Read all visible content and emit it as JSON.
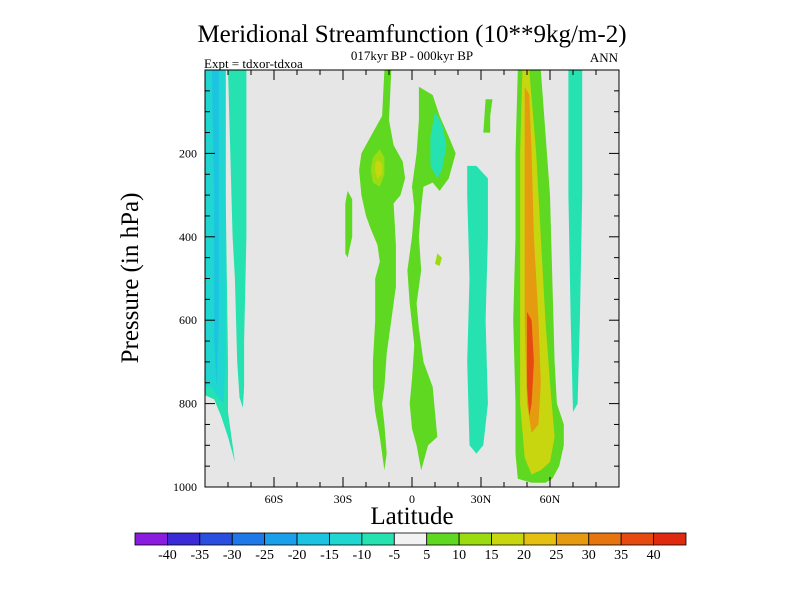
{
  "chart_data": {
    "type": "contour",
    "title": "Meridional Streamfunction (10**9kg/m-2)",
    "subtitle": "017kyr BP - 000kyr BP",
    "left_label": "Expt = tdxor-tdxoa",
    "right_label": "ANN",
    "xlabel": "Latitude",
    "ylabel": "Pressure (in hPa)",
    "xlim": [
      -90,
      90
    ],
    "ylim": [
      1000,
      0
    ],
    "y_inverted": true,
    "plot_background": "#e6e6e6",
    "x_ticks": [
      {
        "value": -60,
        "label": "60S"
      },
      {
        "value": -30,
        "label": "30S"
      },
      {
        "value": 0,
        "label": "0"
      },
      {
        "value": 30,
        "label": "30N"
      },
      {
        "value": 60,
        "label": "60N"
      }
    ],
    "y_ticks": [
      {
        "value": 200,
        "label": "200"
      },
      {
        "value": 400,
        "label": "400"
      },
      {
        "value": 600,
        "label": "600"
      },
      {
        "value": 800,
        "label": "800"
      },
      {
        "value": 1000,
        "label": "1000"
      }
    ],
    "colorbar": {
      "labels": [
        "-40",
        "-35",
        "-30",
        "-25",
        "-20",
        "-15",
        "-10",
        "-5",
        "5",
        "10",
        "15",
        "20",
        "25",
        "30",
        "35",
        "40"
      ],
      "colors": [
        "#8a1ce0",
        "#3a2ad8",
        "#2a4fe0",
        "#1e78e8",
        "#1aa0ea",
        "#1cc4e2",
        "#1fd6d0",
        "#26e2b0",
        "#f2f2f2",
        "#5ed820",
        "#9adc10",
        "#c8d610",
        "#e6c010",
        "#e69a10",
        "#e67410",
        "#e64a10",
        "#e02a10"
      ]
    },
    "regions": [
      {
        "name": "sh-cell-outer",
        "level": -5,
        "points": [
          [
            -90,
            0
          ],
          [
            -72,
            0
          ],
          [
            -72,
            400
          ],
          [
            -73,
            650
          ],
          [
            -73,
            760
          ],
          [
            -73.5,
            810
          ],
          [
            -75,
            785
          ],
          [
            -76,
            700
          ],
          [
            -77,
            500
          ],
          [
            -78,
            400
          ],
          [
            -79,
            200
          ],
          [
            -80,
            0
          ],
          [
            -81,
            0
          ],
          [
            -81,
            300
          ],
          [
            -80,
            700
          ],
          [
            -80,
            820
          ],
          [
            -78,
            900
          ],
          [
            -77,
            940
          ],
          [
            -78,
            920
          ],
          [
            -80,
            880
          ],
          [
            -83,
            830
          ],
          [
            -86,
            790
          ],
          [
            -90,
            780
          ]
        ]
      },
      {
        "name": "sh-cell-mid",
        "level": -10,
        "points": [
          [
            -90,
            0
          ],
          [
            -81,
            0
          ],
          [
            -81,
            300
          ],
          [
            -81,
            700
          ],
          [
            -82,
            800
          ],
          [
            -85,
            780
          ],
          [
            -87,
            760
          ],
          [
            -90,
            760
          ]
        ]
      },
      {
        "name": "sh-cell-core",
        "level": -15,
        "points": [
          [
            -87,
            0
          ],
          [
            -84,
            0
          ],
          [
            -84,
            300
          ],
          [
            -84,
            600
          ],
          [
            -85,
            760
          ],
          [
            -86,
            640
          ],
          [
            -86,
            300
          ]
        ]
      },
      {
        "name": "green-mid",
        "level": 5,
        "points": [
          [
            -12,
            0
          ],
          [
            -9,
            0
          ],
          [
            -10,
            120
          ],
          [
            -8,
            180
          ],
          [
            -4,
            220
          ],
          [
            -3,
            260
          ],
          [
            -5,
            300
          ],
          [
            -8,
            320
          ],
          [
            -7,
            420
          ],
          [
            -7,
            520
          ],
          [
            -9,
            600
          ],
          [
            -11,
            680
          ],
          [
            -12,
            760
          ],
          [
            -13,
            800
          ],
          [
            -12,
            850
          ],
          [
            -11,
            920
          ],
          [
            -12,
            960
          ],
          [
            -14,
            880
          ],
          [
            -16,
            820
          ],
          [
            -17,
            760
          ],
          [
            -17,
            700
          ],
          [
            -16,
            600
          ],
          [
            -16,
            500
          ],
          [
            -14,
            460
          ],
          [
            -15,
            420
          ],
          [
            -18,
            380
          ],
          [
            -20,
            350
          ],
          [
            -22,
            300
          ],
          [
            -23,
            240
          ],
          [
            -22,
            200
          ],
          [
            -19,
            170
          ],
          [
            -16,
            140
          ],
          [
            -13,
            110
          ]
        ]
      },
      {
        "name": "green-mid-yellow",
        "level": 10,
        "points": [
          [
            -14,
            190
          ],
          [
            -12,
            210
          ],
          [
            -12,
            250
          ],
          [
            -14,
            280
          ],
          [
            -17,
            270
          ],
          [
            -18,
            240
          ],
          [
            -17,
            210
          ]
        ]
      },
      {
        "name": "green-mid-core",
        "level": 15,
        "points": [
          [
            -15,
            215
          ],
          [
            -13,
            225
          ],
          [
            -13,
            250
          ],
          [
            -15,
            260
          ],
          [
            -16,
            245
          ],
          [
            -16,
            225
          ]
        ]
      },
      {
        "name": "green-left-spot",
        "level": 5,
        "points": [
          [
            -28,
            290
          ],
          [
            -26,
            310
          ],
          [
            -26,
            400
          ],
          [
            -28,
            450
          ],
          [
            -29,
            440
          ],
          [
            -29,
            320
          ]
        ]
      },
      {
        "name": "equatorial-cells",
        "level": 5,
        "points": [
          [
            3,
            40
          ],
          [
            9,
            60
          ],
          [
            12,
            110
          ],
          [
            16,
            160
          ],
          [
            19,
            200
          ],
          [
            16,
            260
          ],
          [
            12,
            290
          ],
          [
            9,
            270
          ],
          [
            5,
            280
          ],
          [
            4,
            330
          ],
          [
            3,
            400
          ],
          [
            4,
            480
          ],
          [
            2,
            560
          ],
          [
            3,
            620
          ],
          [
            5,
            700
          ],
          [
            9,
            760
          ],
          [
            10,
            820
          ],
          [
            11,
            880
          ],
          [
            7,
            900
          ],
          [
            4,
            960
          ],
          [
            2,
            900
          ],
          [
            0,
            860
          ],
          [
            -1,
            800
          ],
          [
            0,
            740
          ],
          [
            1,
            660
          ],
          [
            -1,
            560
          ],
          [
            -2,
            480
          ],
          [
            0,
            400
          ],
          [
            1,
            330
          ],
          [
            0,
            280
          ],
          [
            2,
            200
          ],
          [
            3,
            120
          ]
        ]
      },
      {
        "name": "equatorial-blue",
        "level": -5,
        "points": [
          [
            10,
            100
          ],
          [
            13,
            130
          ],
          [
            15,
            180
          ],
          [
            13,
            240
          ],
          [
            11,
            260
          ],
          [
            8,
            230
          ],
          [
            8,
            160
          ]
        ]
      },
      {
        "name": "eq-small-spot",
        "level": 10,
        "points": [
          [
            11,
            440
          ],
          [
            13,
            450
          ],
          [
            12,
            470
          ],
          [
            10,
            465
          ]
        ]
      },
      {
        "name": "green-right-strip",
        "level": 5,
        "points": [
          [
            32,
            70
          ],
          [
            35,
            70
          ],
          [
            34,
            110
          ],
          [
            34,
            150
          ],
          [
            31,
            150
          ]
        ]
      },
      {
        "name": "cyan-right",
        "level": -5,
        "points": [
          [
            24,
            230
          ],
          [
            28,
            230
          ],
          [
            33,
            260
          ],
          [
            33,
            400
          ],
          [
            32,
            600
          ],
          [
            33,
            800
          ],
          [
            31,
            900
          ],
          [
            28,
            920
          ],
          [
            25,
            900
          ],
          [
            24,
            700
          ],
          [
            25,
            500
          ],
          [
            24,
            300
          ]
        ]
      },
      {
        "name": "nh-cell-outer",
        "level": 5,
        "points": [
          [
            46,
            0
          ],
          [
            56,
            0
          ],
          [
            60,
            300
          ],
          [
            61,
            500
          ],
          [
            62,
            700
          ],
          [
            63,
            800
          ],
          [
            66,
            850
          ],
          [
            66,
            900
          ],
          [
            64,
            950
          ],
          [
            61,
            980
          ],
          [
            58,
            990
          ],
          [
            52,
            990
          ],
          [
            46,
            980
          ],
          [
            45,
            920
          ],
          [
            45,
            800
          ],
          [
            44,
            600
          ],
          [
            45,
            400
          ],
          [
            45,
            200
          ]
        ]
      },
      {
        "name": "nh-cell-yellow",
        "level": 15,
        "points": [
          [
            48,
            0
          ],
          [
            51,
            0
          ],
          [
            54,
            200
          ],
          [
            56,
            400
          ],
          [
            58,
            600
          ],
          [
            60,
            750
          ],
          [
            62,
            880
          ],
          [
            60,
            940
          ],
          [
            56,
            960
          ],
          [
            52,
            970
          ],
          [
            49,
            930
          ],
          [
            47,
            800
          ],
          [
            47,
            600
          ],
          [
            47,
            400
          ],
          [
            47,
            200
          ]
        ]
      },
      {
        "name": "nh-cell-orange",
        "level": 25,
        "points": [
          [
            49,
            40
          ],
          [
            51,
            60
          ],
          [
            52,
            200
          ],
          [
            53,
            400
          ],
          [
            55,
            600
          ],
          [
            56,
            750
          ],
          [
            55,
            850
          ],
          [
            52,
            870
          ],
          [
            50,
            800
          ],
          [
            49,
            600
          ],
          [
            49,
            400
          ],
          [
            49,
            200
          ]
        ]
      },
      {
        "name": "nh-cell-core",
        "level": 35,
        "points": [
          [
            50,
            580
          ],
          [
            52,
            600
          ],
          [
            53,
            700
          ],
          [
            52,
            800
          ],
          [
            51,
            830
          ],
          [
            50,
            760
          ],
          [
            50,
            650
          ]
        ]
      },
      {
        "name": "cyan-far-right",
        "level": -5,
        "points": [
          [
            68,
            0
          ],
          [
            74,
            0
          ],
          [
            74,
            300
          ],
          [
            73,
            600
          ],
          [
            72,
            800
          ],
          [
            70,
            820
          ],
          [
            69,
            600
          ],
          [
            68,
            300
          ]
        ]
      }
    ]
  }
}
